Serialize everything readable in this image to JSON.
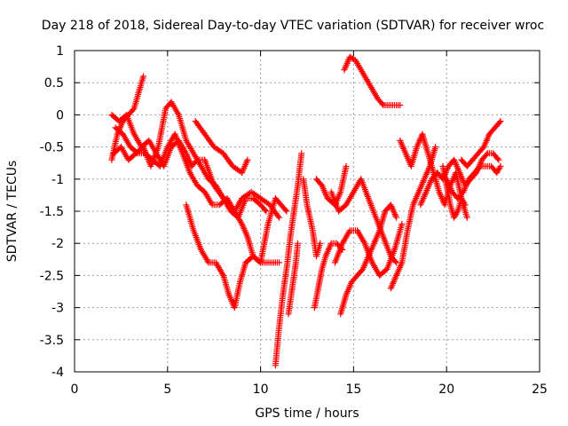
{
  "chart_data": {
    "type": "scatter",
    "title": "Day 218 of 2018, Sidereal Day-to-day VTEC variation (SDTVAR) for receiver wroc",
    "xlabel": "GPS time / hours",
    "ylabel": "SDTVAR / TECUs",
    "xlim": [
      0,
      25
    ],
    "ylim": [
      -4,
      1
    ],
    "xticks": [
      0,
      5,
      10,
      15,
      20,
      25
    ],
    "yticks": [
      1,
      0.5,
      0,
      -0.5,
      -1,
      -1.5,
      -2,
      -2.5,
      -3,
      -3.5,
      -4
    ],
    "xtick_labels": [
      "0",
      "5",
      "10",
      "15",
      "20",
      "25"
    ],
    "ytick_labels": [
      "1",
      "0.5",
      "0",
      "-0.5",
      "-1",
      "-1.5",
      "-2",
      "-2.5",
      "-3",
      "-3.5",
      "-4"
    ],
    "grid": true,
    "marker": "+",
    "color": "#ff0000",
    "series": [
      {
        "name": "s1",
        "x": [
          2.0,
          2.3,
          2.6,
          2.9,
          3.2,
          3.5,
          3.7
        ],
        "y": [
          -0.7,
          -0.3,
          -0.1,
          0.0,
          0.1,
          0.4,
          0.6
        ]
      },
      {
        "name": "s2",
        "x": [
          2.0,
          2.4,
          2.8,
          3.2,
          3.6,
          4.0,
          4.4,
          4.8,
          5.2,
          5.6,
          6.0,
          6.3,
          6.6,
          7.0,
          7.5,
          8.0,
          8.3,
          8.6,
          9.0,
          9.3,
          9.6,
          10.0,
          10.4,
          10.8,
          11.1,
          11.4
        ],
        "y": [
          -0.0,
          -0.1,
          0.0,
          -0.3,
          -0.5,
          -0.4,
          -0.6,
          -0.8,
          -0.5,
          -0.4,
          -0.6,
          -0.8,
          -0.7,
          -0.7,
          -1.1,
          -1.3,
          -1.4,
          -1.5,
          -1.7,
          -1.9,
          -2.2,
          -2.3,
          -1.7,
          -1.3,
          -1.4,
          -1.5
        ]
      },
      {
        "name": "s3",
        "x": [
          2.1,
          2.5,
          2.9,
          3.3,
          3.7,
          4.1,
          4.5,
          4.9,
          5.2,
          5.6,
          6.0,
          6.4,
          6.8,
          7.2,
          7.6,
          8.0,
          8.4,
          8.8,
          9.2,
          9.6,
          10.0,
          10.3
        ],
        "y": [
          -0.6,
          -0.5,
          -0.7,
          -0.6,
          -0.5,
          -0.8,
          -0.5,
          0.1,
          0.2,
          0.0,
          -0.4,
          -0.6,
          -0.8,
          -1.0,
          -1.1,
          -1.3,
          -1.5,
          -1.6,
          -1.3,
          -1.3,
          -1.4,
          -1.5
        ]
      },
      {
        "name": "s4",
        "x": [
          2.2,
          2.6,
          3.0,
          3.4,
          3.8,
          4.2,
          4.6,
          5.0,
          5.4,
          5.8,
          6.2,
          6.6,
          7.0,
          7.4,
          7.8,
          8.2,
          8.6,
          9.0,
          9.5,
          10.0,
          10.5,
          11.0
        ],
        "y": [
          -0.2,
          -0.3,
          -0.5,
          -0.6,
          -0.6,
          -0.7,
          -0.8,
          -0.5,
          -0.3,
          -0.6,
          -0.9,
          -1.1,
          -1.2,
          -1.4,
          -1.4,
          -1.3,
          -1.5,
          -1.3,
          -1.2,
          -1.3,
          -1.4,
          -1.6
        ]
      },
      {
        "name": "s5",
        "x": [
          6.5,
          7.0,
          7.5,
          8.0,
          8.5,
          9.0,
          9.3
        ],
        "y": [
          -0.1,
          -0.3,
          -0.5,
          -0.6,
          -0.8,
          -0.9,
          -0.7
        ]
      },
      {
        "name": "s6",
        "x": [
          6.0,
          6.4,
          6.8,
          7.2,
          7.6,
          8.0,
          8.3,
          8.6,
          8.9,
          9.2,
          9.6,
          10.0,
          10.5,
          11.0
        ],
        "y": [
          -1.4,
          -1.8,
          -2.1,
          -2.3,
          -2.3,
          -2.5,
          -2.8,
          -3.0,
          -2.6,
          -2.3,
          -2.2,
          -2.3,
          -2.3,
          -2.3
        ]
      },
      {
        "name": "s7",
        "x": [
          10.8,
          11.0,
          11.2,
          11.4,
          11.6,
          11.8,
          12.0,
          12.2
        ],
        "y": [
          -3.9,
          -3.3,
          -2.8,
          -2.4,
          -1.9,
          -1.5,
          -1.1,
          -0.6
        ]
      },
      {
        "name": "s8",
        "x": [
          11.5,
          11.7,
          11.9,
          12.0
        ],
        "y": [
          -3.1,
          -2.7,
          -2.3,
          -2.0
        ]
      },
      {
        "name": "s9",
        "x": [
          12.3,
          12.5,
          12.8,
          13.0,
          13.2
        ],
        "y": [
          -1.0,
          -1.4,
          -1.8,
          -2.2,
          -2.0
        ]
      },
      {
        "name": "s10",
        "x": [
          12.9,
          13.1,
          13.3,
          13.5,
          13.8,
          14.1,
          14.4
        ],
        "y": [
          -3.0,
          -2.7,
          -2.4,
          -2.2,
          -2.0,
          -2.0,
          -2.1
        ]
      },
      {
        "name": "s11",
        "x": [
          13.0,
          13.3,
          13.6,
          14.0,
          14.3,
          14.6
        ],
        "y": [
          -1.0,
          -1.1,
          -1.3,
          -1.4,
          -1.2,
          -0.8
        ]
      },
      {
        "name": "s12",
        "x": [
          13.8,
          14.2,
          14.6,
          15.0,
          15.4,
          15.8,
          16.2,
          16.6,
          17.0,
          17.3
        ],
        "y": [
          -1.2,
          -1.5,
          -1.4,
          -1.2,
          -1.0,
          -1.3,
          -1.6,
          -1.9,
          -2.2,
          -2.3
        ]
      },
      {
        "name": "s13",
        "x": [
          14.0,
          14.4,
          14.8,
          15.2,
          15.6,
          16.0,
          16.4,
          16.8,
          17.2,
          17.6
        ],
        "y": [
          -2.3,
          -2.0,
          -1.8,
          -1.8,
          -2.0,
          -2.3,
          -2.5,
          -2.4,
          -2.1,
          -1.7
        ]
      },
      {
        "name": "s14",
        "x": [
          14.3,
          14.6,
          14.9,
          15.2,
          15.5,
          15.8,
          16.1,
          16.4,
          16.7,
          17.0,
          17.3
        ],
        "y": [
          -3.1,
          -2.8,
          -2.6,
          -2.5,
          -2.4,
          -2.2,
          -2.0,
          -1.8,
          -1.5,
          -1.4,
          -1.6
        ]
      },
      {
        "name": "s15",
        "x": [
          14.5,
          14.8,
          15.1,
          15.4,
          15.7,
          16.0,
          16.3,
          16.6,
          16.9,
          17.2,
          17.5
        ],
        "y": [
          0.7,
          0.9,
          0.85,
          0.7,
          0.55,
          0.4,
          0.25,
          0.15,
          0.15,
          0.15,
          0.15
        ]
      },
      {
        "name": "s16",
        "x": [
          17.0,
          17.3,
          17.6,
          17.9,
          18.2,
          18.5,
          18.8,
          19.1,
          19.4
        ],
        "y": [
          -2.7,
          -2.5,
          -2.3,
          -1.8,
          -1.4,
          -1.2,
          -1.0,
          -0.8,
          -0.5
        ]
      },
      {
        "name": "s17",
        "x": [
          17.5,
          17.8,
          18.1,
          18.4,
          18.7,
          19.0,
          19.3,
          19.6,
          19.9,
          20.2,
          20.5,
          20.8,
          21.1
        ],
        "y": [
          -0.4,
          -0.6,
          -0.8,
          -0.5,
          -0.3,
          -0.6,
          -0.9,
          -1.2,
          -1.4,
          -1.1,
          -0.9,
          -1.3,
          -1.6
        ]
      },
      {
        "name": "s18",
        "x": [
          18.6,
          18.9,
          19.2,
          19.5,
          19.8,
          20.1,
          20.4,
          20.7,
          21.0,
          21.3,
          21.6,
          21.9,
          22.2,
          22.5,
          22.8
        ],
        "y": [
          -1.4,
          -1.2,
          -1.0,
          -0.9,
          -1.0,
          -0.8,
          -0.7,
          -0.9,
          -1.1,
          -1.0,
          -0.9,
          -0.7,
          -0.6,
          -0.6,
          -0.7
        ]
      },
      {
        "name": "s19",
        "x": [
          20.8,
          21.1,
          21.4,
          21.7,
          22.0,
          22.3,
          22.6,
          22.9
        ],
        "y": [
          -0.7,
          -0.8,
          -0.7,
          -0.6,
          -0.5,
          -0.3,
          -0.2,
          -0.1
        ]
      },
      {
        "name": "s20",
        "x": [
          20.0,
          20.3,
          20.6,
          20.9,
          21.2,
          21.5,
          21.8,
          22.1,
          22.4,
          22.7,
          22.9
        ],
        "y": [
          -1.0,
          -1.2,
          -1.3,
          -1.2,
          -1.0,
          -0.9,
          -0.8,
          -0.8,
          -0.8,
          -0.9,
          -0.8
        ]
      },
      {
        "name": "s21",
        "x": [
          19.8,
          20.0,
          20.2,
          20.4,
          20.6,
          20.8,
          21.0
        ],
        "y": [
          -0.8,
          -1.1,
          -1.4,
          -1.6,
          -1.5,
          -1.3,
          -1.4
        ]
      }
    ]
  }
}
